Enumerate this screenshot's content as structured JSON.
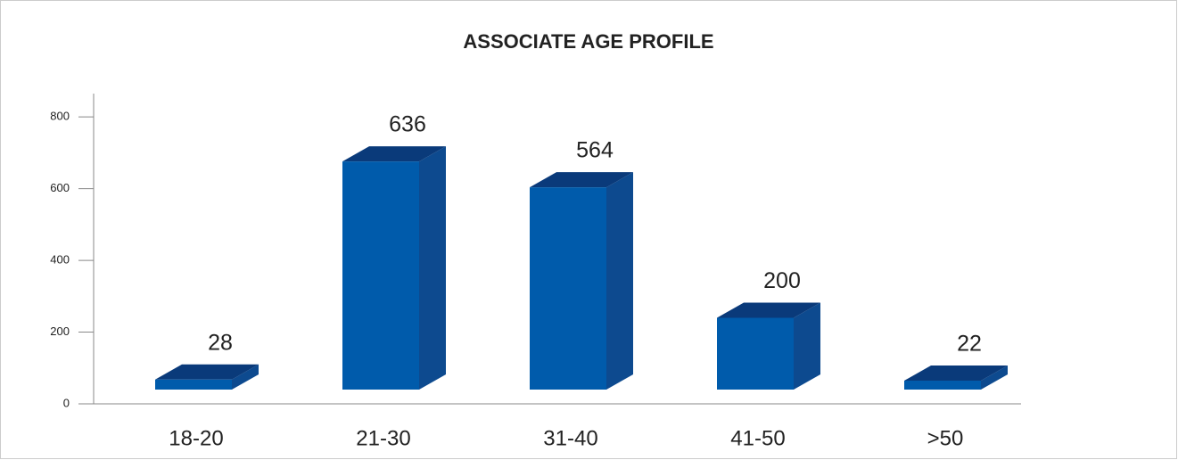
{
  "chart_data": {
    "type": "bar",
    "title": "ASSOCIATE AGE PROFILE",
    "categories": [
      "18-20",
      "21-30",
      "31-40",
      "41-50",
      ">50"
    ],
    "values": [
      28,
      636,
      564,
      200,
      22
    ],
    "color": "#005bab",
    "ylim": [
      0,
      865
    ],
    "yticks": [
      0,
      200,
      400,
      600,
      800
    ]
  }
}
